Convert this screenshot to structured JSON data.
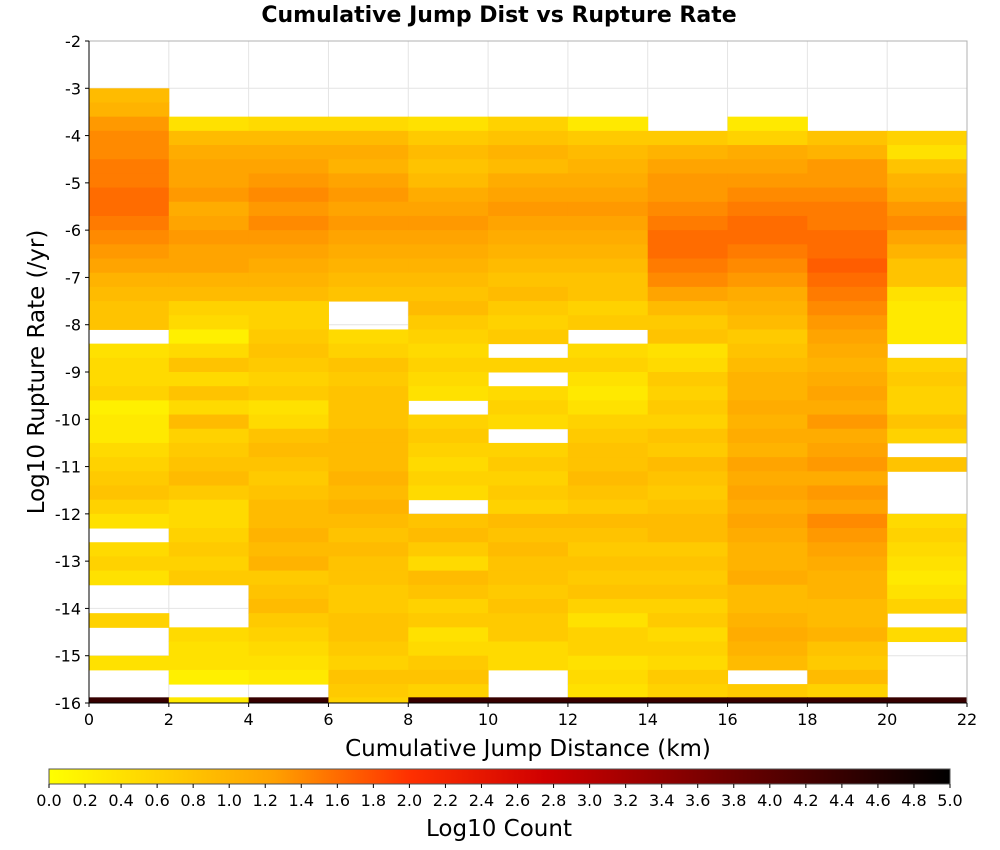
{
  "chart_data": {
    "type": "heatmap",
    "title": "Cumulative Jump Dist vs Rupture Rate",
    "xlabel": "Cumulative Jump Distance (km)",
    "ylabel": "Log10 Rupture Rate (/yr)",
    "colorbar_label": "Log10 Count",
    "xlim": [
      0,
      22
    ],
    "ylim": [
      -16,
      -2
    ],
    "x_ticks": [
      "0",
      "2",
      "4",
      "6",
      "8",
      "10",
      "12",
      "14",
      "16",
      "18",
      "20",
      "22"
    ],
    "y_ticks": [
      "-2",
      "-3",
      "-4",
      "-5",
      "-6",
      "-7",
      "-8",
      "-9",
      "-10",
      "-11",
      "-12",
      "-13",
      "-14",
      "-15",
      "-16"
    ],
    "colorbar_ticks": [
      "0.0",
      "0.2",
      "0.4",
      "0.6",
      "0.8",
      "1.0",
      "1.2",
      "1.4",
      "1.6",
      "1.8",
      "2.0",
      "2.2",
      "2.4",
      "2.6",
      "2.8",
      "3.0",
      "3.2",
      "3.4",
      "3.6",
      "3.8",
      "4.0",
      "4.2",
      "4.4",
      "4.6",
      "4.8",
      "5.0"
    ],
    "colorbar_range": [
      0,
      5
    ],
    "colorscale": [
      "#ffff00",
      "#ffa500",
      "#ff0000",
      "#000000"
    ],
    "x_bin_width_km": 2,
    "y_bin_height": 0.3,
    "x_bins_start": [
      0,
      2,
      4,
      6,
      8,
      10,
      12,
      14,
      16,
      18,
      20
    ],
    "columns": [
      {
        "x_start": 0,
        "y_top": -3.0,
        "values": [
          0.9,
          1.0,
          1.3,
          1.4,
          1.4,
          1.5,
          1.5,
          1.6,
          1.6,
          1.5,
          1.4,
          1.3,
          1.2,
          1.0,
          0.9,
          0.8,
          0.8,
          null,
          0.4,
          0.5,
          0.5,
          0.6,
          0.2,
          0.3,
          0.3,
          0.5,
          0.6,
          0.7,
          0.8,
          0.6,
          0.4,
          null,
          0.5,
          0.6,
          0.4,
          null,
          null,
          0.6,
          null,
          null,
          0.4,
          null,
          null,
          null,
          0.4,
          null,
          null,
          0.5,
          null,
          null,
          null,
          null
        ]
      },
      {
        "x_start": 2,
        "y_top": -3.6,
        "values": [
          0.4,
          0.9,
          1.1,
          1.2,
          1.2,
          1.3,
          1.1,
          1.2,
          1.3,
          1.2,
          1.2,
          1.0,
          0.9,
          0.6,
          0.5,
          0.2,
          0.5,
          0.8,
          0.5,
          0.8,
          0.5,
          0.9,
          0.6,
          0.7,
          0.8,
          0.9,
          0.7,
          0.5,
          0.5,
          0.6,
          0.7,
          0.6,
          0.7,
          null,
          null,
          null,
          0.5,
          0.4,
          0.4,
          0.2,
          null,
          null,
          null,
          null,
          null,
          null,
          null,
          null,
          null,
          0.3
        ]
      },
      {
        "x_start": 4,
        "y_top": -3.6,
        "values": [
          0.5,
          0.9,
          1.1,
          1.2,
          1.3,
          1.4,
          1.3,
          1.4,
          1.3,
          1.2,
          1.1,
          1.0,
          0.9,
          0.6,
          0.6,
          0.7,
          0.8,
          0.7,
          0.6,
          0.7,
          0.4,
          0.5,
          0.8,
          0.9,
          0.8,
          0.7,
          0.8,
          0.9,
          0.9,
          1.0,
          0.9,
          1.0,
          0.7,
          0.8,
          0.9,
          0.7,
          0.6,
          0.5,
          0.4,
          0.3,
          null,
          0.4
        ]
      },
      {
        "x_start": 6,
        "y_top": -3.6,
        "values": [
          0.5,
          0.9,
          1.1,
          1.0,
          1.2,
          1.3,
          1.2,
          1.3,
          1.2,
          1.1,
          1.0,
          0.9,
          0.8,
          null,
          null,
          0.5,
          0.6,
          0.8,
          0.7,
          0.8,
          0.8,
          0.8,
          0.9,
          0.9,
          0.9,
          1.0,
          0.9,
          1.0,
          0.9,
          0.8,
          0.9,
          0.8,
          0.8,
          0.7,
          0.7,
          0.8,
          0.8,
          0.7,
          0.6,
          0.8,
          0.7,
          0.6,
          0.5,
          0.6,
          0.4,
          null,
          0.5,
          null,
          0.6,
          0.5
        ]
      },
      {
        "x_start": 8,
        "y_top": -3.6,
        "values": [
          0.4,
          0.7,
          0.9,
          0.8,
          0.9,
          1.1,
          1.2,
          1.3,
          1.2,
          1.1,
          1.0,
          0.9,
          0.8,
          0.9,
          0.7,
          0.6,
          0.5,
          0.6,
          0.5,
          0.4,
          null,
          0.6,
          0.7,
          0.6,
          0.5,
          0.6,
          0.5,
          null,
          0.8,
          0.9,
          0.7,
          0.5,
          0.9,
          0.8,
          0.6,
          0.7,
          0.4,
          0.5,
          0.7,
          0.8,
          0.6
        ]
      },
      {
        "x_start": 10,
        "y_top": -3.6,
        "values": [
          0.6,
          0.8,
          1.0,
          0.9,
          1.1,
          1.2,
          1.3,
          1.2,
          1.1,
          1.0,
          0.9,
          0.8,
          0.9,
          0.7,
          0.6,
          0.7,
          null,
          0.6,
          null,
          0.5,
          0.6,
          0.5,
          null,
          0.6,
          0.7,
          0.6,
          0.7,
          0.6,
          0.9,
          0.8,
          0.9,
          0.8,
          0.8,
          0.7,
          0.8,
          0.7,
          0.7,
          0.5,
          0.5,
          null,
          null,
          null,
          null,
          0.3,
          0.4
        ]
      },
      {
        "x_start": 12,
        "y_top": -3.6,
        "values": [
          0.3,
          0.7,
          0.9,
          1.0,
          1.1,
          1.2,
          1.3,
          1.2,
          1.1,
          1.0,
          0.9,
          0.8,
          0.8,
          0.6,
          0.7,
          null,
          0.5,
          0.6,
          0.4,
          0.3,
          0.4,
          0.6,
          0.7,
          0.8,
          0.8,
          0.9,
          0.8,
          0.7,
          0.9,
          0.8,
          0.7,
          0.8,
          0.7,
          0.8,
          0.6,
          0.4,
          0.6,
          0.6,
          0.4,
          0.5,
          0.4,
          0.4,
          0.3,
          0.9,
          null,
          null,
          0.4,
          0.4
        ]
      },
      {
        "x_start": 14,
        "y_top": -3.9,
        "values": [
          0.7,
          1.0,
          1.2,
          1.3,
          1.3,
          1.4,
          1.5,
          1.6,
          1.6,
          1.5,
          1.4,
          1.2,
          0.9,
          0.7,
          0.8,
          0.4,
          0.5,
          0.7,
          0.6,
          0.7,
          0.6,
          0.8,
          0.7,
          0.9,
          0.8,
          0.7,
          0.8,
          0.9,
          0.9,
          0.7,
          0.8,
          0.7,
          0.8,
          0.6,
          0.7,
          0.5,
          0.6,
          0.5,
          0.7,
          0.6,
          0.3,
          0.3,
          0.3,
          0.3,
          0.3,
          0.3,
          0.3,
          0.3,
          0.3
        ]
      },
      {
        "x_start": 16,
        "y_top": -3.6,
        "values": [
          0.3,
          0.6,
          1.1,
          1.2,
          1.3,
          1.4,
          1.5,
          1.6,
          1.6,
          1.5,
          1.4,
          1.3,
          1.1,
          1.0,
          0.9,
          0.7,
          0.8,
          0.9,
          1.0,
          1.0,
          1.1,
          1.0,
          1.1,
          1.0,
          1.2,
          1.1,
          1.2,
          1.1,
          1.2,
          1.1,
          1.0,
          1.0,
          1.1,
          0.9,
          0.9,
          1.0,
          1.1,
          1.0,
          0.9,
          null,
          0.7,
          0.7,
          0.8,
          0.6,
          0.7,
          0.5,
          0.9,
          0.8
        ]
      },
      {
        "x_start": 18,
        "y_top": -3.9,
        "values": [
          0.8,
          1.0,
          1.3,
          1.3,
          1.4,
          1.5,
          1.5,
          1.6,
          1.6,
          1.7,
          1.6,
          1.5,
          1.4,
          1.3,
          1.2,
          1.1,
          1.0,
          1.1,
          1.2,
          1.1,
          1.3,
          1.1,
          1.2,
          1.3,
          1.1,
          1.3,
          1.2,
          1.4,
          1.3,
          1.2,
          1.1,
          1.0,
          1.0,
          0.9,
          0.9,
          1.0,
          0.8,
          0.7,
          0.9,
          0.6,
          0.4,
          0.3,
          0.6,
          0.8,
          0.6,
          null,
          0.3
        ]
      },
      {
        "x_start": 20,
        "y_top": -3.9,
        "values": [
          0.6,
          0.4,
          0.8,
          1.0,
          1.1,
          1.3,
          1.4,
          1.2,
          1.0,
          0.8,
          0.8,
          0.4,
          0.3,
          0.3,
          0.3,
          null,
          0.6,
          0.7,
          0.6,
          0.6,
          0.8,
          0.6,
          null,
          0.8,
          null,
          null,
          null,
          0.5,
          0.6,
          0.5,
          0.4,
          0.3,
          0.4,
          0.6,
          null,
          0.5
        ]
      }
    ],
    "bottom_row": {
      "y": -16,
      "values": [
        4.4,
        0.3,
        4.4,
        0.6,
        4.4,
        4.4,
        4.4,
        4.4,
        4.4,
        4.4,
        4.4
      ]
    }
  }
}
